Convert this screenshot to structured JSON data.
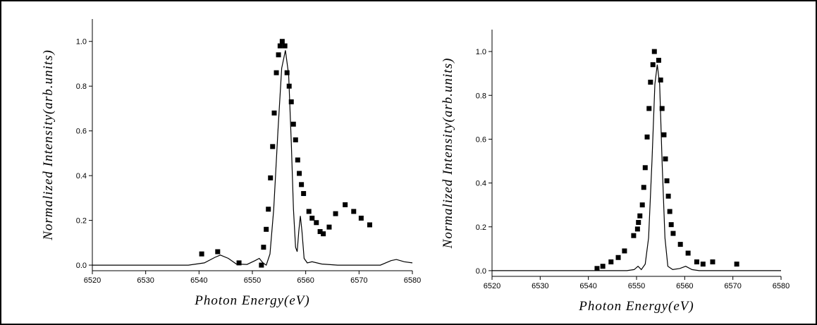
{
  "chart_data": [
    {
      "type": "scatter",
      "xlabel": "Photon Energy(eV)",
      "ylabel": "Normalized Intensity(arb.units)",
      "xlim": [
        6520,
        6580
      ],
      "ylim": [
        -0.025,
        1.1
      ],
      "xticks": [
        6520,
        6530,
        6540,
        6550,
        6560,
        6570,
        6580
      ],
      "yticks": [
        {
          "value": 0,
          "label": "0.0"
        },
        0.2,
        0.4,
        0.6,
        0.8,
        {
          "value": 1,
          "label": "1.0"
        }
      ],
      "series": [
        {
          "kind": "points",
          "color": "#000000",
          "x": [
            6540.5,
            6543.5,
            6547.5,
            6551.7,
            6552.1,
            6552.6,
            6553.0,
            6553.4,
            6553.8,
            6554.1,
            6554.5,
            6554.9,
            6555.2,
            6555.6,
            6556.1,
            6556.5,
            6556.9,
            6557.3,
            6557.7,
            6558.1,
            6558.5,
            6558.8,
            6559.2,
            6559.6,
            6560.6,
            6561.2,
            6562.0,
            6562.7,
            6563.3,
            6564.4,
            6565.6,
            6567.4,
            6569.0,
            6570.4,
            6572.0
          ],
          "values": [
            0.05,
            0.06,
            0.01,
            0.0,
            0.08,
            0.16,
            0.25,
            0.39,
            0.53,
            0.68,
            0.86,
            0.94,
            0.98,
            1.0,
            0.98,
            0.86,
            0.8,
            0.73,
            0.63,
            0.56,
            0.47,
            0.41,
            0.36,
            0.32,
            0.24,
            0.21,
            0.19,
            0.15,
            0.14,
            0.17,
            0.23,
            0.27,
            0.24,
            0.21,
            0.18
          ]
        },
        {
          "kind": "line",
          "color": "#000000",
          "x": [
            6520,
            6538,
            6541,
            6543,
            6544,
            6545.5,
            6547,
            6549,
            6550.5,
            6551.3,
            6552,
            6552.6,
            6553.3,
            6554,
            6554.8,
            6555.5,
            6556.2,
            6556.8,
            6557.3,
            6557.7,
            6558.1,
            6558.4,
            6558.7,
            6559,
            6559.3,
            6559.7,
            6560.3,
            6561.2,
            6563,
            6566,
            6574,
            6576,
            6577,
            6578.5,
            6580
          ],
          "values": [
            0,
            0,
            0.01,
            0.035,
            0.045,
            0.03,
            0.005,
            0.003,
            0.02,
            0.03,
            0.01,
            0.0,
            0.05,
            0.25,
            0.6,
            0.88,
            0.96,
            0.85,
            0.55,
            0.25,
            0.08,
            0.06,
            0.15,
            0.22,
            0.15,
            0.03,
            0.01,
            0.015,
            0.005,
            0,
            0,
            0.02,
            0.025,
            0.015,
            0.01
          ]
        }
      ]
    },
    {
      "type": "scatter",
      "xlabel": "Photon Energy(eV)",
      "ylabel": "Normalized Intensity(arb.units)",
      "xlim": [
        6520,
        6580
      ],
      "ylim": [
        -0.026,
        1.1
      ],
      "xticks": [
        6520,
        6530,
        6540,
        6550,
        6560,
        6570,
        6580
      ],
      "yticks": [
        {
          "value": 0,
          "label": "0.0"
        },
        0.2,
        0.4,
        0.6,
        0.8,
        {
          "value": 1,
          "label": "1.0"
        }
      ],
      "series": [
        {
          "kind": "points",
          "color": "#000000",
          "x": [
            6541.8,
            6543.0,
            6544.7,
            6546.2,
            6547.5,
            6549.4,
            6550.2,
            6550.4,
            6550.7,
            6551.2,
            6551.5,
            6551.8,
            6552.2,
            6552.6,
            6552.9,
            6553.4,
            6553.7,
            6554.6,
            6555.0,
            6555.3,
            6555.7,
            6556.0,
            6556.3,
            6556.6,
            6556.9,
            6557.2,
            6557.6,
            6559.1,
            6560.7,
            6562.5,
            6563.8,
            6565.8,
            6570.8
          ],
          "values": [
            0.01,
            0.02,
            0.04,
            0.06,
            0.09,
            0.16,
            0.19,
            0.22,
            0.25,
            0.3,
            0.38,
            0.47,
            0.61,
            0.74,
            0.86,
            0.94,
            1.0,
            0.96,
            0.87,
            0.74,
            0.62,
            0.51,
            0.41,
            0.34,
            0.27,
            0.21,
            0.17,
            0.12,
            0.08,
            0.04,
            0.03,
            0.04,
            0.03
          ]
        },
        {
          "kind": "line",
          "color": "#000000",
          "x": [
            6520,
            6548,
            6549.5,
            6550.3,
            6551,
            6551.8,
            6552.5,
            6553.2,
            6553.8,
            6554.3,
            6554.8,
            6555.3,
            6555.9,
            6556.5,
            6557.5,
            6559,
            6560.2,
            6561.5,
            6563,
            6580
          ],
          "values": [
            0,
            0,
            0.005,
            0.02,
            0.005,
            0.03,
            0.15,
            0.5,
            0.85,
            0.94,
            0.85,
            0.5,
            0.15,
            0.02,
            0.005,
            0.01,
            0.02,
            0.005,
            0,
            0
          ]
        }
      ]
    }
  ]
}
